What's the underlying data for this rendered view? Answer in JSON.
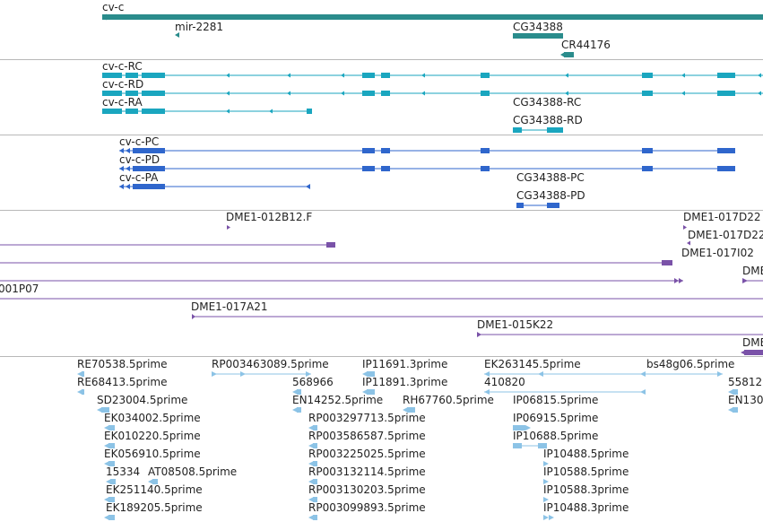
{
  "tracks": {
    "genes": {
      "cv_c": "cv-c",
      "mir_2281": "mir-2281",
      "cg34388": "CG34388",
      "cr44176": "CR44176"
    },
    "transcripts": {
      "cv_c_rc": "cv-c-RC",
      "cv_c_rd": "cv-c-RD",
      "cv_c_ra": "cv-c-RA",
      "cg34388_rc": "CG34388-RC",
      "cg34388_rd": "CG34388-RD"
    },
    "proteins": {
      "cv_c_pc": "cv-c-PC",
      "cv_c_pd": "cv-c-PD",
      "cv_c_pa": "cv-c-PA",
      "cg34388_pc": "CG34388-PC",
      "cg34388_pd": "CG34388-PD"
    },
    "clones": {
      "dme1_012b12f": "DME1-012B12.F",
      "dme1_017d22_a": "DME1-017D22",
      "dme1_017d22_b": "DME1-017D22",
      "dme1_017i02": "DME1-017I02",
      "dme_trunc_a": "DME",
      "p07": "001P07",
      "dme1_017a21": "DME1-017A21",
      "dme1_015k22": "DME1-015K22",
      "dme_trunc_b": "DME"
    },
    "ests": {
      "re70538": "RE70538.5prime",
      "rp003463089": "RP003463089.5prime",
      "ip11691": "IP11691.3prime",
      "ek263145": "EK263145.5prime",
      "bs48g06": "bs48g06.5prime",
      "re68413": "RE68413.5prime",
      "e568966": "568966",
      "ip11891": "IP11891.3prime",
      "e410820": "410820",
      "e55812": "55812",
      "sd23004": "SD23004.5prime",
      "en14252": "EN14252.5prime",
      "rh67760": "RH67760.5prime",
      "ip06815": "IP06815.5prime",
      "en130": "EN130",
      "ek034002": "EK034002.5prime",
      "rp003297713": "RP003297713.5prime",
      "ip06915": "IP06915.5prime",
      "ek010220": "EK010220.5prime",
      "rp003586587": "RP003586587.5prime",
      "ip10688": "IP10688.5prime",
      "ek056910": "EK056910.5prime",
      "rp003225025": "RP003225025.5prime",
      "ip10488a": "IP10488.5prime",
      "e15334": "15334",
      "at08508": "AT08508.5prime",
      "rp003132114": "RP003132114.5prime",
      "ip10588a": "IP10588.5prime",
      "ek251140": "EK251140.5prime",
      "rp003130203": "RP003130203.5prime",
      "ip10588b": "IP10588.3prime",
      "ek189205": "EK189205.5prime",
      "rp003099893": "RP003099893.5prime",
      "ip10488b": "IP10488.3prime"
    }
  },
  "colors": {
    "gene": "#2a8c8c",
    "transcript": "#1aa6bf",
    "protein": "#2f66cc",
    "clone": "#7a52a8",
    "est": "#8cc3e6",
    "separator": "#b8b8b8"
  }
}
